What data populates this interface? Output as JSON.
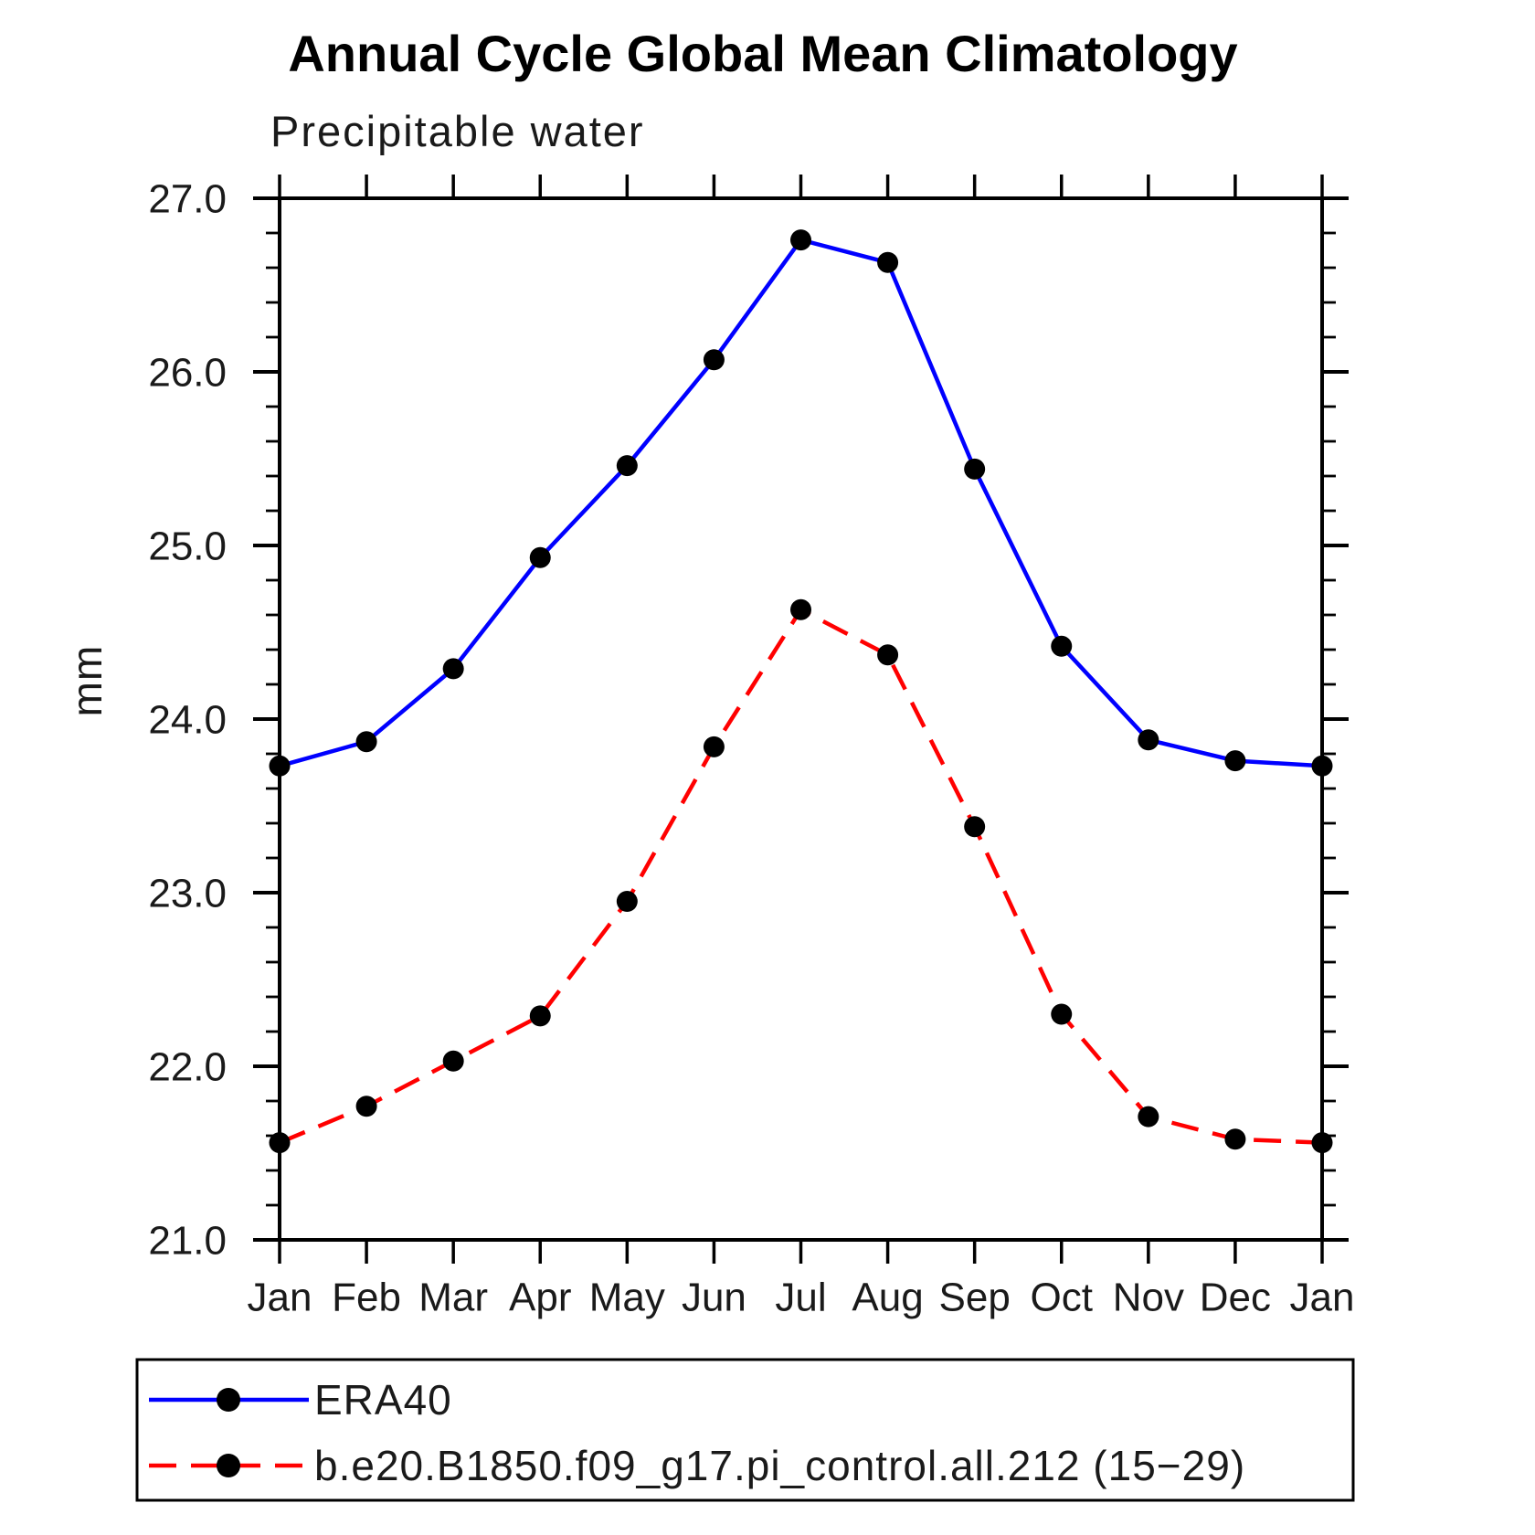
{
  "page": {
    "background_color": "#ffffff",
    "text_color": "#1a1a1a"
  },
  "chart_data": {
    "type": "line",
    "title": "Annual Cycle Global Mean Climatology",
    "subtitle": "Precipitable water",
    "ylabel": "mm",
    "xlabel": "",
    "x_tick_labels": [
      "Jan",
      "Feb",
      "Mar",
      "Apr",
      "May",
      "Jun",
      "Jul",
      "Aug",
      "Sep",
      "Oct",
      "Nov",
      "Dec",
      "Jan"
    ],
    "y_tick_labels": [
      "21.0",
      "22.0",
      "23.0",
      "24.0",
      "25.0",
      "26.0",
      "27.0"
    ],
    "ylim": [
      21.0,
      27.0
    ],
    "y_major_step": 1.0,
    "y_minor_step": 0.2,
    "grid": "off",
    "legend_position": "bottom-left-box",
    "series": [
      {
        "name": "ERA40",
        "line_style": "solid",
        "color": "#0000ff",
        "marker": "filled-circle",
        "marker_color": "#000000",
        "values": [
          23.73,
          23.87,
          24.29,
          24.93,
          25.46,
          26.07,
          26.76,
          26.63,
          25.44,
          24.42,
          23.88,
          23.76,
          23.73
        ]
      },
      {
        "name": "b.e20.B1850.f09_g17.pi_control.all.212 (15−29)",
        "line_style": "dashed",
        "color": "#ff0000",
        "marker": "filled-circle",
        "marker_color": "#000000",
        "values": [
          21.56,
          21.77,
          22.03,
          22.29,
          22.95,
          23.84,
          24.63,
          24.37,
          23.38,
          22.3,
          21.71,
          21.58,
          21.56
        ]
      }
    ]
  }
}
